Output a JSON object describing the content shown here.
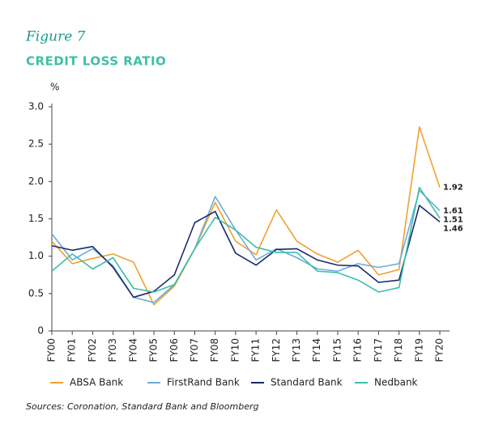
{
  "chart_data": {
    "type": "line",
    "subtitle": "Figure 7",
    "title": "CREDIT LOSS RATIO",
    "y_label": "%",
    "source": "Sources: Coronation, Standard Bank and Bloomberg",
    "categories": [
      "FY00",
      "FY01",
      "FY02",
      "FY03",
      "FY04",
      "FY05",
      "FY06",
      "FY07",
      "FY08",
      "FY10",
      "FY11",
      "FY12",
      "FY13",
      "FY14",
      "FY15",
      "FY16",
      "FY17",
      "FY18",
      "FY19",
      "FY20"
    ],
    "ylim": [
      0,
      3
    ],
    "yticks": [
      0,
      {
        "value": 0.5,
        "label": "0.5"
      },
      {
        "value": 1,
        "label": "1.0"
      },
      {
        "value": 1.5,
        "label": "1.5"
      },
      {
        "value": 2,
        "label": "2.0"
      },
      {
        "value": 2.5,
        "label": "2.5"
      },
      {
        "value": 3,
        "label": "3.0"
      }
    ],
    "grid": false,
    "legend": "bottom",
    "series": [
      {
        "name": "ABSA Bank",
        "color": "#f0a030",
        "values": [
          1.2,
          0.9,
          0.97,
          1.03,
          0.92,
          0.35,
          0.6,
          1.1,
          1.72,
          1.2,
          1.02,
          1.62,
          1.2,
          1.03,
          0.92,
          1.08,
          0.75,
          0.82,
          2.73,
          1.92
        ]
      },
      {
        "name": "FirstRand Bank",
        "color": "#6aaed6",
        "values": [
          1.3,
          0.95,
          1.1,
          0.87,
          0.45,
          0.38,
          0.62,
          1.1,
          1.8,
          1.35,
          0.95,
          1.1,
          0.98,
          0.83,
          0.8,
          0.9,
          0.85,
          0.9,
          1.88,
          1.61
        ]
      },
      {
        "name": "Standard Bank",
        "color": "#1b2a6b",
        "values": [
          1.14,
          1.08,
          1.13,
          0.85,
          0.45,
          0.53,
          0.75,
          1.45,
          1.6,
          1.04,
          0.88,
          1.09,
          1.1,
          0.95,
          0.88,
          0.87,
          0.65,
          0.68,
          1.68,
          1.46
        ]
      },
      {
        "name": "Nedbank",
        "color": "#3dbfa8",
        "values": [
          0.8,
          1.03,
          0.83,
          0.98,
          0.57,
          0.52,
          0.62,
          1.1,
          1.52,
          1.35,
          1.12,
          1.05,
          1.05,
          0.8,
          0.78,
          0.68,
          0.52,
          0.58,
          1.92,
          1.51
        ]
      }
    ]
  }
}
